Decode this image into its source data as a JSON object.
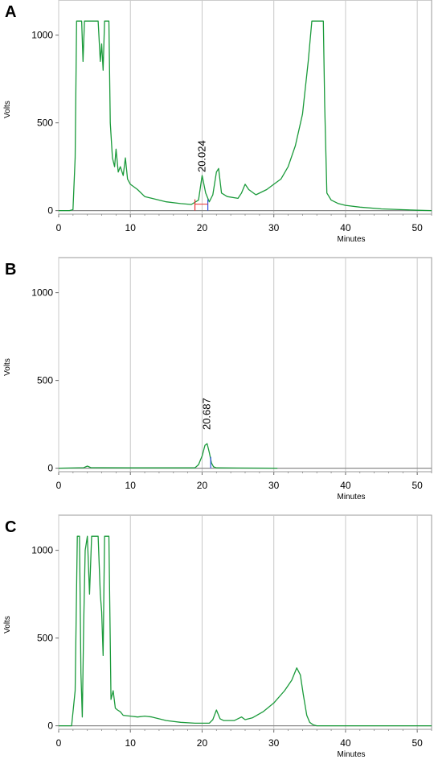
{
  "chart_data": [
    {
      "panel_label": "A",
      "type": "line",
      "xlabel": "Minutes",
      "ylabel": "Volts",
      "xlim": [
        0,
        52
      ],
      "ylim": [
        -20,
        1200
      ],
      "x_ticks": [
        0,
        10,
        20,
        30,
        40,
        50
      ],
      "y_ticks": [
        0,
        500,
        1000
      ],
      "grid": true,
      "line_color": "#1a9a3a",
      "peak_label": {
        "text": "20.024",
        "x": 20.0,
        "y": 200
      },
      "baseline_marks": [
        {
          "x": 19.0,
          "color": "#e83030"
        },
        {
          "x": 20.8,
          "color": "#3050e0"
        }
      ],
      "series": [
        {
          "x": [
            0,
            1.5,
            2.0,
            2.3,
            2.5,
            2.8,
            3.2,
            3.4,
            3.6,
            4.0,
            5.5,
            5.8,
            6.0,
            6.2,
            6.4,
            6.6,
            7.0,
            7.2,
            7.5,
            7.8,
            8.0,
            8.3,
            8.6,
            9.0,
            9.3,
            9.6,
            10.0,
            11.0,
            12.0,
            13.0,
            15.0,
            17.0,
            18.5,
            19.5,
            20.0,
            20.5,
            21.0,
            21.5,
            22.0,
            22.3,
            22.7,
            23.5,
            25.0,
            25.5,
            26.0,
            26.5,
            27.5,
            29.0,
            30.0,
            31.0,
            32.0,
            33.0,
            34.0,
            34.8,
            35.3,
            35.5,
            36.0,
            36.5,
            36.9,
            37.1,
            37.4,
            38.0,
            39.0,
            40.0,
            42.0,
            45.0,
            48.0,
            50.0,
            52.0
          ],
          "y": [
            0,
            0,
            5,
            300,
            1080,
            1080,
            1080,
            850,
            1080,
            1080,
            1080,
            850,
            950,
            800,
            1080,
            1080,
            1080,
            500,
            300,
            250,
            350,
            220,
            250,
            200,
            300,
            180,
            150,
            120,
            80,
            70,
            50,
            40,
            35,
            60,
            200,
            100,
            50,
            90,
            220,
            240,
            100,
            80,
            70,
            100,
            150,
            120,
            90,
            120,
            150,
            180,
            250,
            370,
            550,
            850,
            1080,
            1080,
            1080,
            1080,
            1080,
            600,
            100,
            60,
            40,
            30,
            20,
            10,
            5,
            2,
            0
          ]
        }
      ]
    },
    {
      "panel_label": "B",
      "type": "line",
      "xlabel": "Minutes",
      "ylabel": "Volts",
      "xlim": [
        0,
        52
      ],
      "ylim": [
        -20,
        1200
      ],
      "x_ticks": [
        0,
        10,
        20,
        30,
        40,
        50
      ],
      "y_ticks": [
        0,
        500,
        1000
      ],
      "grid": true,
      "line_color": "#1a9a3a",
      "peak_label": {
        "text": "20.687",
        "x": 20.7,
        "y": 200
      },
      "baseline_marks": [
        {
          "x": 21.2,
          "color": "#3050e0"
        }
      ],
      "series": [
        {
          "x": [
            0,
            3.5,
            4.0,
            4.5,
            10,
            19.0,
            19.5,
            20.0,
            20.4,
            20.7,
            21.0,
            21.3,
            21.6,
            22.0,
            25.0,
            30.5
          ],
          "y": [
            0,
            3,
            12,
            3,
            2,
            2,
            20,
            70,
            130,
            140,
            90,
            30,
            8,
            2,
            1,
            0
          ]
        }
      ]
    },
    {
      "panel_label": "C",
      "type": "line",
      "xlabel": "Minutes",
      "ylabel": "Volts",
      "xlim": [
        0,
        52
      ],
      "ylim": [
        -20,
        1200
      ],
      "x_ticks": [
        0,
        10,
        20,
        30,
        40,
        50
      ],
      "y_ticks": [
        0,
        500,
        1000
      ],
      "grid": true,
      "line_color": "#1a9a3a",
      "series": [
        {
          "x": [
            0,
            1.8,
            2.3,
            2.6,
            2.9,
            3.1,
            3.3,
            3.5,
            3.7,
            4.0,
            4.3,
            4.6,
            4.8,
            5.1,
            5.5,
            5.8,
            6.0,
            6.2,
            6.4,
            6.6,
            7.0,
            7.3,
            7.6,
            7.9,
            8.2,
            8.6,
            9.0,
            10.0,
            11.0,
            12.0,
            13.0,
            15.0,
            17.0,
            19.0,
            20.0,
            21.0,
            21.5,
            22.0,
            22.5,
            23.0,
            24.5,
            25.5,
            26.0,
            27.0,
            28.5,
            30.0,
            31.5,
            32.5,
            33.2,
            33.7,
            34.1,
            34.6,
            35.0,
            35.5,
            36.0,
            40.0,
            52.0
          ],
          "y": [
            0,
            0,
            200,
            1080,
            1080,
            300,
            50,
            600,
            1000,
            1080,
            750,
            1080,
            1080,
            1080,
            1080,
            750,
            650,
            400,
            1080,
            1080,
            1080,
            150,
            200,
            100,
            90,
            80,
            60,
            55,
            50,
            55,
            50,
            30,
            20,
            15,
            15,
            15,
            35,
            90,
            40,
            30,
            30,
            50,
            35,
            45,
            80,
            130,
            200,
            260,
            330,
            290,
            180,
            60,
            20,
            5,
            0,
            0,
            0
          ]
        }
      ]
    }
  ]
}
